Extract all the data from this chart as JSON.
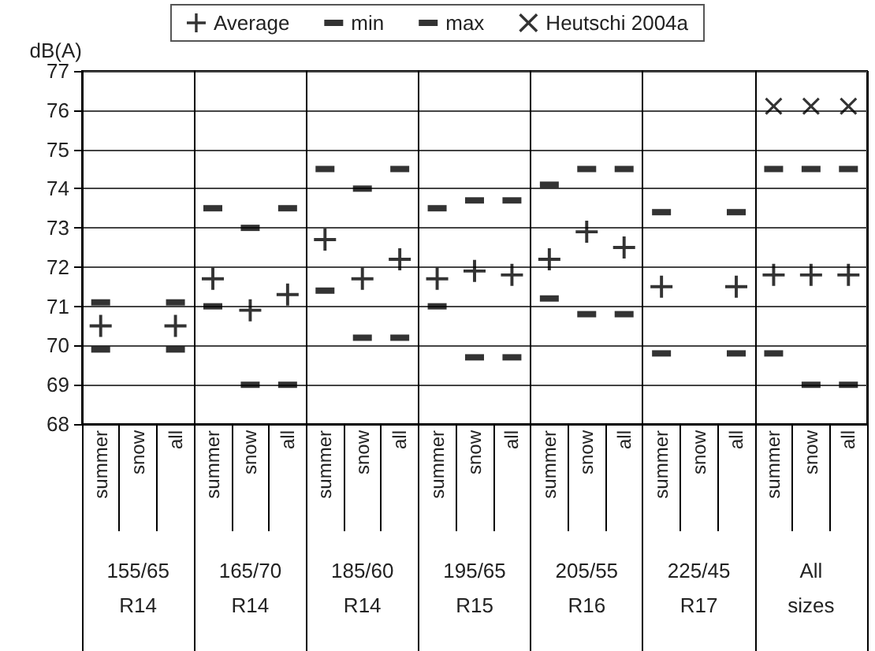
{
  "chart_data": {
    "type": "scatter",
    "ylabel": "dB(A)",
    "categories": [
      "summer",
      "snow",
      "all",
      "summer",
      "snow",
      "all",
      "summer",
      "snow",
      "all",
      "summer",
      "snow",
      "all",
      "summer",
      "snow",
      "all",
      "summer",
      "snow",
      "all",
      "summer",
      "snow",
      "all"
    ],
    "annotations": [
      "155/65\nR14",
      "165/70\nR14",
      "185/60\nR14",
      "195/65\nR15",
      "205/55\nR16",
      "225/45\nR17",
      "All\nsizes"
    ],
    "series": [
      {
        "name": "Average",
        "color": "#000000",
        "marker": "cross",
        "values": [
          70.5,
          null,
          70.5,
          71.7,
          70.9,
          71.3,
          72.7,
          71.7,
          72.2,
          71.7,
          71.9,
          71.8,
          72.2,
          72.9,
          72.5,
          71.5,
          null,
          71.5,
          71.8,
          71.8,
          71.8
        ]
      },
      {
        "name": "min",
        "color": "#000000",
        "marker": "square",
        "values": [
          69.9,
          null,
          69.9,
          71.0,
          69.0,
          69.0,
          71.4,
          70.2,
          70.2,
          71.0,
          69.7,
          69.7,
          71.2,
          70.8,
          70.8,
          69.8,
          null,
          69.8,
          69.8,
          69.0,
          69.0
        ]
      },
      {
        "name": "max",
        "color": "#000000",
        "marker": "square",
        "values": [
          71.1,
          null,
          71.1,
          73.5,
          73.0,
          73.5,
          74.5,
          74.0,
          74.5,
          73.5,
          73.7,
          73.7,
          74.1,
          74.5,
          74.5,
          73.4,
          null,
          73.4,
          74.5,
          74.5,
          74.5
        ]
      },
      {
        "name": "Heutschi 2004a",
        "color": "#000000",
        "marker": "cross",
        "values": [
          null,
          null,
          null,
          null,
          null,
          null,
          null,
          null,
          null,
          null,
          null,
          null,
          null,
          null,
          null,
          null,
          null,
          null,
          76.1,
          76.1,
          76.1
        ]
      }
    ],
    "ylim": [
      68,
      77
    ],
    "yticks": [
      68,
      69,
      70,
      71,
      72,
      73,
      74,
      75,
      76,
      77
    ],
    "grid": "y",
    "legend": "top"
  }
}
